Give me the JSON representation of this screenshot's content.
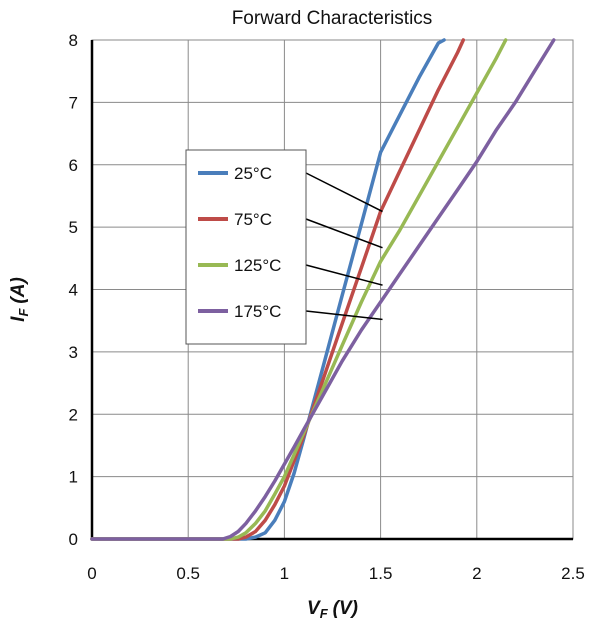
{
  "chart_data": {
    "type": "line",
    "title": "Forward Characteristics",
    "xlabel": "V",
    "xlabel_sub": "F",
    "xlabel_unit": "(V)",
    "ylabel": "I",
    "ylabel_sub": "F",
    "ylabel_unit": "(A)",
    "xlim": [
      0,
      2.5
    ],
    "ylim": [
      0,
      8
    ],
    "x_ticks": [
      0,
      0.5,
      1,
      1.5,
      2,
      2.5
    ],
    "x_tick_labels": [
      "0",
      "0.5",
      "1",
      "1.5",
      "2",
      "2.5"
    ],
    "y_ticks": [
      0,
      1,
      2,
      3,
      4,
      5,
      6,
      7,
      8
    ],
    "y_tick_labels": [
      "0",
      "1",
      "2",
      "3",
      "4",
      "5",
      "6",
      "7",
      "8"
    ],
    "grid": true,
    "legend_position": "center-left",
    "series": [
      {
        "name": "25°C",
        "color": "#4a7ebb",
        "x": [
          0,
          0.8,
          0.85,
          0.9,
          0.95,
          1.0,
          1.05,
          1.1,
          1.2,
          1.3,
          1.4,
          1.5,
          1.6,
          1.7,
          1.8,
          1.83
        ],
        "y": [
          0,
          0,
          0.03,
          0.1,
          0.3,
          0.6,
          1.05,
          1.6,
          2.75,
          3.9,
          5.05,
          6.2,
          6.8,
          7.4,
          7.95,
          8.0
        ]
      },
      {
        "name": "75°C",
        "color": "#be4b48",
        "x": [
          0,
          0.76,
          0.8,
          0.85,
          0.9,
          0.95,
          1.0,
          1.05,
          1.1,
          1.2,
          1.3,
          1.4,
          1.5,
          1.6,
          1.7,
          1.8,
          1.9,
          1.93
        ],
        "y": [
          0,
          0,
          0.03,
          0.12,
          0.3,
          0.55,
          0.85,
          1.25,
          1.65,
          2.55,
          3.45,
          4.35,
          5.25,
          5.9,
          6.55,
          7.2,
          7.8,
          8.0
        ]
      },
      {
        "name": "125°C",
        "color": "#98b954",
        "x": [
          0,
          0.72,
          0.76,
          0.8,
          0.85,
          0.9,
          0.95,
          1.0,
          1.05,
          1.1,
          1.2,
          1.3,
          1.4,
          1.5,
          1.6,
          1.7,
          1.8,
          1.9,
          2.0,
          2.1,
          2.15
        ],
        "y": [
          0,
          0,
          0.03,
          0.1,
          0.25,
          0.45,
          0.72,
          1.0,
          1.35,
          1.7,
          2.4,
          3.1,
          3.8,
          4.45,
          4.95,
          5.5,
          6.05,
          6.6,
          7.15,
          7.7,
          8.0
        ]
      },
      {
        "name": "175°C",
        "color": "#7d60a0",
        "x": [
          0,
          0.68,
          0.72,
          0.76,
          0.8,
          0.85,
          0.9,
          0.95,
          1.0,
          1.05,
          1.1,
          1.2,
          1.3,
          1.4,
          1.5,
          1.6,
          1.7,
          1.8,
          1.9,
          2.0,
          2.1,
          2.2,
          2.3,
          2.4
        ],
        "y": [
          0,
          0,
          0.04,
          0.12,
          0.25,
          0.45,
          0.68,
          0.93,
          1.2,
          1.47,
          1.75,
          2.3,
          2.85,
          3.35,
          3.8,
          4.25,
          4.7,
          5.15,
          5.6,
          6.05,
          6.55,
          7.0,
          7.5,
          8.0
        ]
      }
    ],
    "legend_callouts": [
      {
        "series": "25°C",
        "target": [
          1.51,
          5.25
        ]
      },
      {
        "series": "75°C",
        "target": [
          1.51,
          4.67
        ]
      },
      {
        "series": "125°C",
        "target": [
          1.51,
          4.07
        ]
      },
      {
        "series": "175°C",
        "target": [
          1.51,
          3.52
        ]
      }
    ]
  }
}
